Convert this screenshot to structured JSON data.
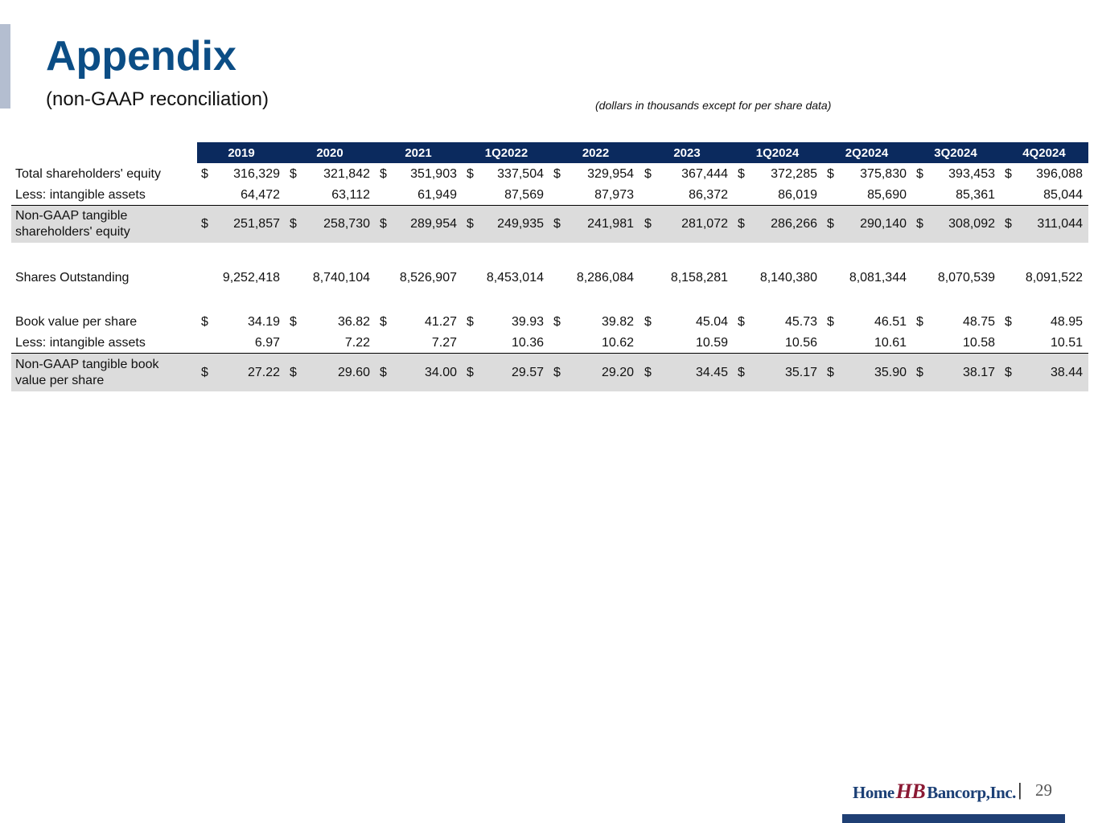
{
  "header": {
    "title": "Appendix",
    "subtitle": "(non-GAAP reconciliation)",
    "note": "(dollars in thousands except for per share data)"
  },
  "table": {
    "columns": [
      "2019",
      "2020",
      "2021",
      "1Q2022",
      "2022",
      "2023",
      "1Q2024",
      "2Q2024",
      "3Q2024",
      "4Q2024"
    ],
    "rows": [
      {
        "label": "Total shareholders' equity",
        "prefix": "$",
        "cells": [
          "316,329",
          "321,842",
          "351,903",
          "337,504",
          "329,954",
          "367,444",
          "372,285",
          "375,830",
          "393,453",
          "396,088"
        ]
      },
      {
        "label": "Less: intangible assets",
        "cells": [
          "64,472",
          "63,112",
          "61,949",
          "87,569",
          "87,973",
          "86,372",
          "86,019",
          "85,690",
          "85,361",
          "85,044"
        ]
      },
      {
        "label": "Non-GAAP tangible shareholders' equity",
        "prefix": "$",
        "cells": [
          "251,857",
          "258,730",
          "289,954",
          "249,935",
          "241,981",
          "281,072",
          "286,266",
          "290,140",
          "308,092",
          "311,044"
        ]
      },
      {
        "label": "Shares Outstanding",
        "cells": [
          "9,252,418",
          "8,740,104",
          "8,526,907",
          "8,453,014",
          "8,286,084",
          "8,158,281",
          "8,140,380",
          "8,081,344",
          "8,070,539",
          "8,091,522"
        ]
      },
      {
        "label": "Book value per share",
        "prefix": "$",
        "cells": [
          "34.19",
          "36.82",
          "41.27",
          "39.93",
          "39.82",
          "45.04",
          "45.73",
          "46.51",
          "48.75",
          "48.95"
        ]
      },
      {
        "label": "Less: intangible assets",
        "cells": [
          "6.97",
          "7.22",
          "7.27",
          "10.36",
          "10.62",
          "10.59",
          "10.56",
          "10.61",
          "10.58",
          "10.51"
        ]
      },
      {
        "label": "Non-GAAP tangible book value per share",
        "prefix": "$",
        "cells": [
          "27.22",
          "29.60",
          "34.00",
          "29.57",
          "29.20",
          "34.45",
          "35.17",
          "35.90",
          "38.17",
          "38.44"
        ]
      }
    ]
  },
  "footer": {
    "logo_left": "Home",
    "logo_mark": "HB",
    "logo_right": "Bancorp,Inc.",
    "page": "29"
  }
}
